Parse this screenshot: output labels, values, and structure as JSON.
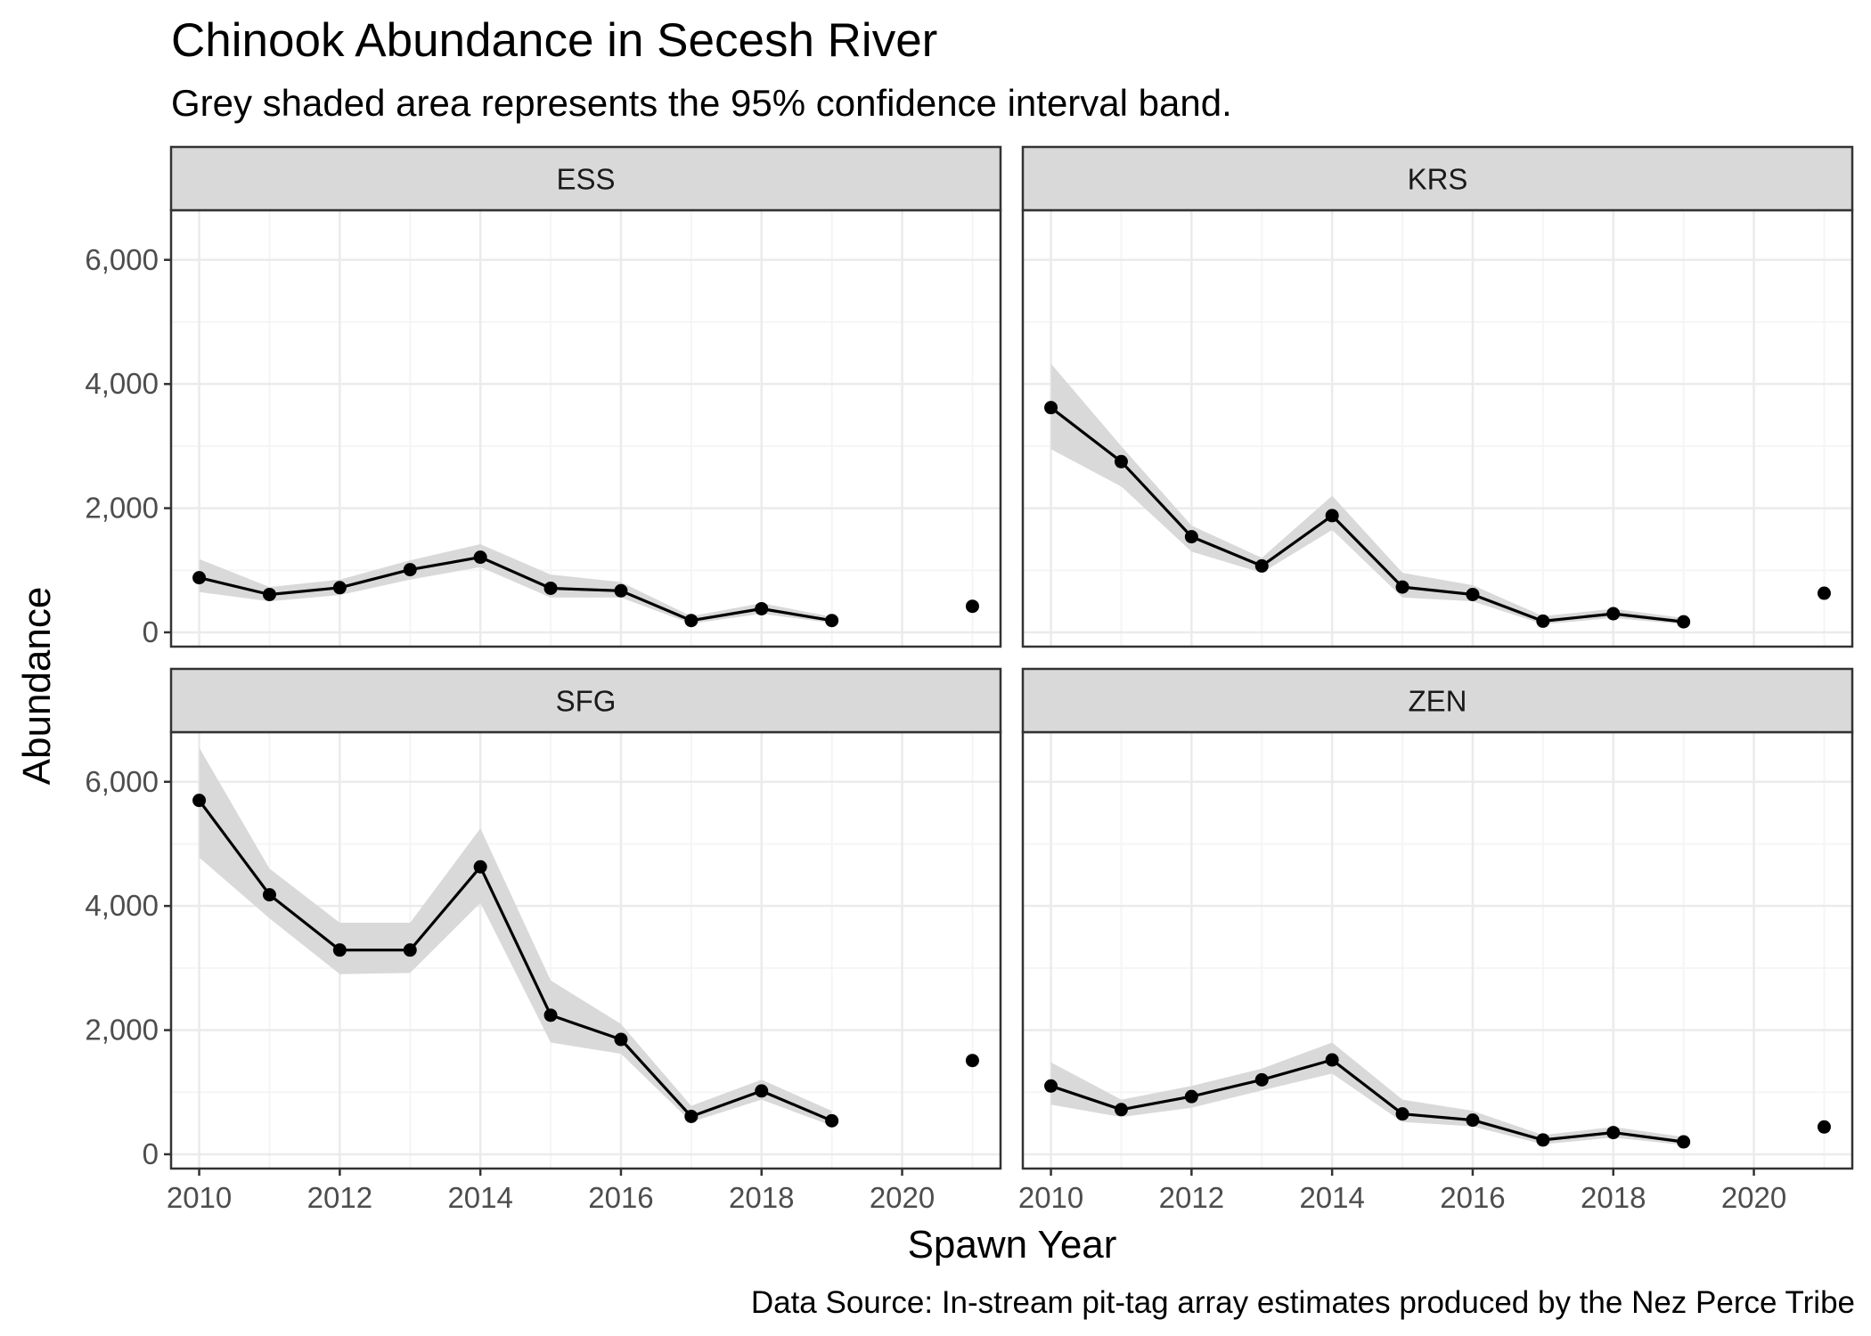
{
  "chart_data": {
    "type": "line",
    "title": "Chinook Abundance in Secesh River",
    "subtitle": "Grey shaded area represents the 95% confidence interval band.",
    "caption": "Data Source: In-stream pit-tag array estimates produced by the Nez Perce Tribe",
    "xlabel": "Spawn Year",
    "ylabel": "Abundance",
    "xlim": [
      2009.6,
      2021.4
    ],
    "ylim": [
      -230,
      6800
    ],
    "x_ticks": [
      2010,
      2012,
      2014,
      2016,
      2018,
      2020
    ],
    "x_tick_labels": [
      "2010",
      "2012",
      "2014",
      "2016",
      "2018",
      "2020"
    ],
    "y_ticks": [
      0,
      2000,
      4000,
      6000
    ],
    "y_tick_labels": [
      "0",
      "2,000",
      "4,000",
      "6,000"
    ],
    "grid": true,
    "colors": {
      "line": "#000000",
      "band": "#d9d9d9",
      "strip": "#d9d9d9",
      "gridMajor": "#ebebeb",
      "gridMinor": "#f5f5f5"
    },
    "panels": [
      {
        "name": "ESS",
        "x": [
          2010,
          2011,
          2012,
          2013,
          2014,
          2015,
          2016,
          2017,
          2018,
          2019
        ],
        "y": [
          880,
          610,
          720,
          1010,
          1210,
          710,
          670,
          190,
          380,
          190
        ],
        "lower": [
          650,
          500,
          600,
          850,
          1050,
          560,
          560,
          140,
          300,
          150
        ],
        "upper": [
          1180,
          730,
          850,
          1160,
          1420,
          930,
          810,
          260,
          470,
          250
        ],
        "extra_x": [
          2021
        ],
        "extra_y": [
          420
        ]
      },
      {
        "name": "KRS",
        "x": [
          2010,
          2011,
          2012,
          2013,
          2014,
          2015,
          2016,
          2017,
          2018,
          2019
        ],
        "y": [
          3620,
          2750,
          1540,
          1070,
          1880,
          730,
          610,
          180,
          300,
          170
        ],
        "lower": [
          2950,
          2350,
          1300,
          960,
          1650,
          560,
          500,
          130,
          230,
          130
        ],
        "upper": [
          4330,
          3000,
          1720,
          1200,
          2200,
          960,
          760,
          260,
          380,
          230
        ],
        "extra_x": [
          2021
        ],
        "extra_y": [
          630
        ]
      },
      {
        "name": "SFG",
        "x": [
          2010,
          2011,
          2012,
          2013,
          2014,
          2015,
          2016,
          2017,
          2018,
          2019
        ],
        "y": [
          5700,
          4180,
          3290,
          3290,
          4630,
          2240,
          1850,
          610,
          1020,
          540
        ],
        "lower": [
          4780,
          3800,
          2900,
          2920,
          4050,
          1800,
          1620,
          520,
          880,
          460
        ],
        "upper": [
          6550,
          4600,
          3730,
          3730,
          5250,
          2800,
          2100,
          780,
          1200,
          700
        ],
        "extra_x": [
          2021
        ],
        "extra_y": [
          1510
        ]
      },
      {
        "name": "ZEN",
        "x": [
          2010,
          2011,
          2012,
          2013,
          2014,
          2015,
          2016,
          2017,
          2018,
          2019
        ],
        "y": [
          1100,
          720,
          930,
          1200,
          1520,
          650,
          550,
          230,
          350,
          200
        ],
        "lower": [
          800,
          600,
          750,
          1030,
          1300,
          520,
          450,
          160,
          270,
          150
        ],
        "upper": [
          1480,
          880,
          1100,
          1380,
          1800,
          880,
          700,
          310,
          440,
          280
        ],
        "extra_x": [
          2021
        ],
        "extra_y": [
          440
        ]
      }
    ]
  }
}
